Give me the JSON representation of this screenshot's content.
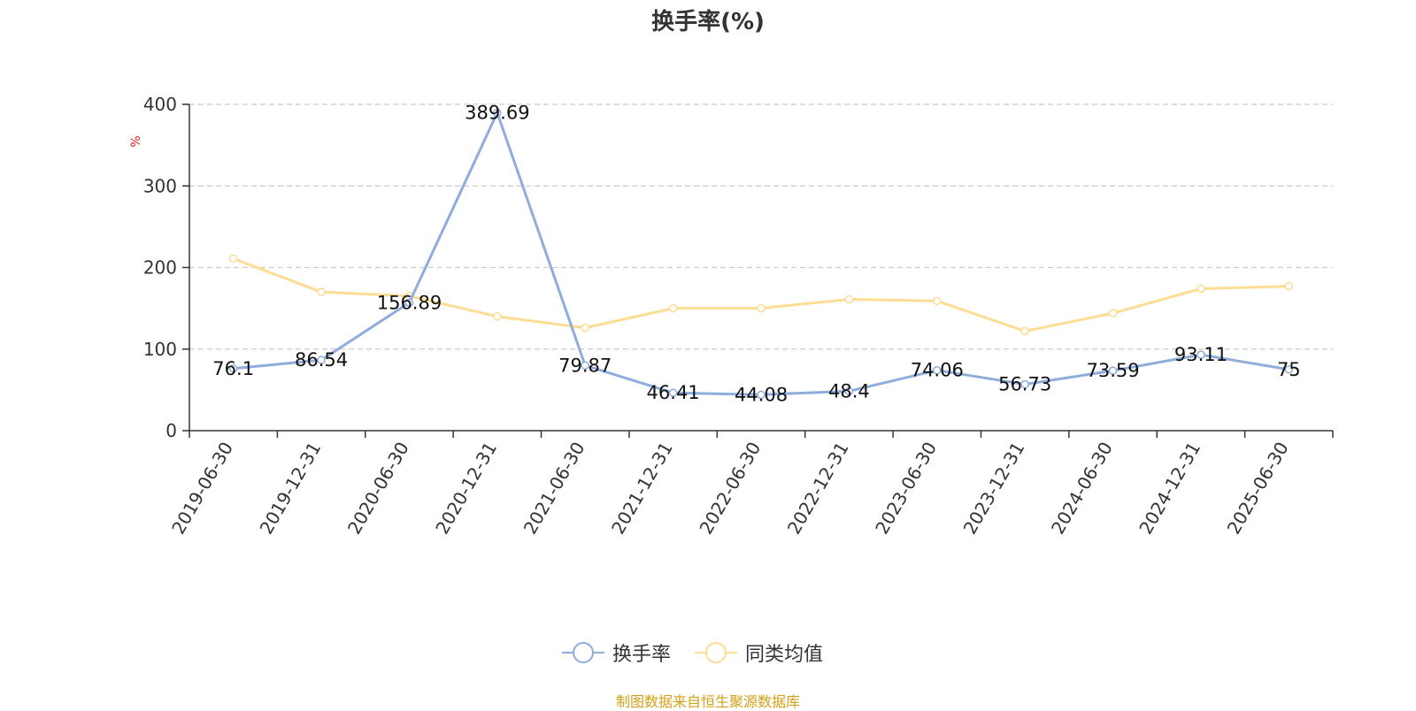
{
  "title": "换手率(%)",
  "source_note": "制图数据来自恒生聚源数据库",
  "colors": {
    "series_1": "#8eaddc",
    "series_2": "#fddc94",
    "ylabel": "#e02020",
    "source": "#d4a017"
  },
  "chart_data": {
    "type": "line",
    "title": "换手率(%)",
    "ylabel": "%",
    "ylim": [
      0,
      400
    ],
    "yticks": [
      0,
      100,
      200,
      300,
      400
    ],
    "grid": true,
    "legend_position": "bottom",
    "categories": [
      "2019-06-30",
      "2019-12-31",
      "2020-06-30",
      "2020-12-31",
      "2021-06-30",
      "2021-12-31",
      "2022-06-30",
      "2022-12-31",
      "2023-06-30",
      "2023-12-31",
      "2024-06-30",
      "2024-12-31",
      "2025-06-30"
    ],
    "series": [
      {
        "name": "换手率",
        "values": [
          76.1,
          86.54,
          156.89,
          389.69,
          79.87,
          46.41,
          44.08,
          48.4,
          74.06,
          56.73,
          73.59,
          93.11,
          75
        ],
        "labels": [
          "76.1",
          "86.54",
          "156.89",
          "389.69",
          "79.87",
          "46.41",
          "44.08",
          "48.4",
          "74.06",
          "56.73",
          "73.59",
          "93.11",
          "75"
        ]
      },
      {
        "name": "同类均值",
        "values": [
          211,
          170,
          165,
          140,
          126,
          150,
          150,
          161,
          159,
          122,
          144,
          174,
          177
        ]
      }
    ]
  }
}
